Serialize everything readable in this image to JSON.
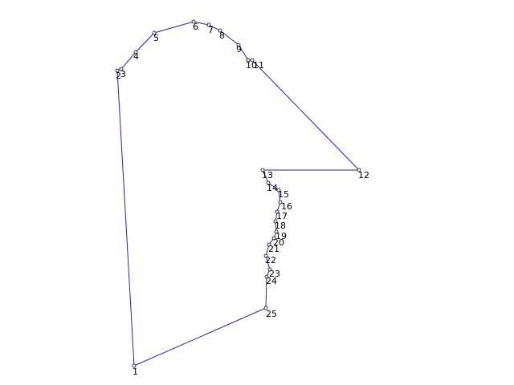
{
  "colors": {
    "background": "#ffffff",
    "edge": "#2222cc",
    "vertex": "#000000",
    "label": "#000000"
  },
  "polygon": {
    "closed": true,
    "vertices": [
      {
        "label": "1"
      },
      {
        "label": "2"
      },
      {
        "label": "3"
      },
      {
        "label": "4"
      },
      {
        "label": "5"
      },
      {
        "label": "6"
      },
      {
        "label": "7"
      },
      {
        "label": "8"
      },
      {
        "label": "9"
      },
      {
        "label": "10"
      },
      {
        "label": "11"
      },
      {
        "label": "12"
      },
      {
        "label": "13"
      },
      {
        "label": "14"
      },
      {
        "label": "15"
      },
      {
        "label": "16"
      },
      {
        "label": "17"
      },
      {
        "label": "18"
      },
      {
        "label": "19"
      },
      {
        "label": "20"
      },
      {
        "label": "21"
      },
      {
        "label": "22"
      },
      {
        "label": "23"
      },
      {
        "label": "24"
      },
      {
        "label": "25"
      }
    ]
  }
}
